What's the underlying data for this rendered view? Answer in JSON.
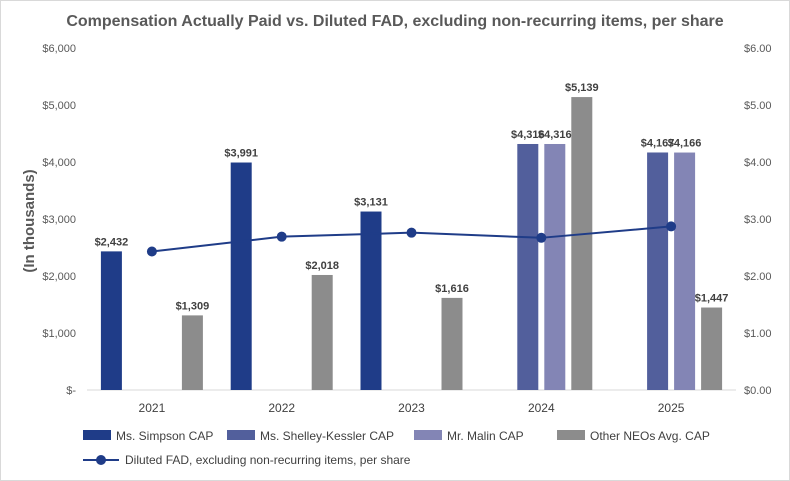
{
  "chart_data": {
    "type": "bar",
    "title": "Compensation Actually Paid vs. Diluted FAD, excluding non-recurring items, per share",
    "ylabel": "(In thousands)",
    "categories": [
      "2021",
      "2022",
      "2023",
      "2024",
      "2025"
    ],
    "y_left": {
      "ylim": [
        0,
        6000
      ],
      "ticks": [
        0,
        1000,
        2000,
        3000,
        4000,
        5000,
        6000
      ],
      "tick_labels": [
        "$-",
        "$1,000",
        "$2,000",
        "$3,000",
        "$4,000",
        "$5,000",
        "$6,000"
      ]
    },
    "y_right": {
      "ylim": [
        0,
        6
      ],
      "ticks": [
        0,
        1,
        2,
        3,
        4,
        5,
        6
      ],
      "tick_labels": [
        "$0.00",
        "$1.00",
        "$2.00",
        "$3.00",
        "$4.00",
        "$5.00",
        "$6.00"
      ]
    },
    "grid": false,
    "legend_position": "bottom",
    "series": [
      {
        "name": "Ms. Simpson CAP",
        "type": "bar",
        "color": "#1f3c88",
        "values": [
          2432,
          3991,
          3131,
          null,
          null
        ],
        "labels": [
          "$2,432",
          "$3,991",
          "$3,131",
          null,
          null
        ]
      },
      {
        "name": "Ms. Shelley-Kessler CAP",
        "type": "bar",
        "color": "#525f9c",
        "values": [
          null,
          null,
          null,
          4316,
          4167
        ],
        "labels": [
          null,
          null,
          null,
          "$4,316",
          "$4,167"
        ]
      },
      {
        "name": "Mr. Malin CAP",
        "type": "bar",
        "color": "#8385b5",
        "values": [
          null,
          null,
          null,
          4316,
          4166
        ],
        "labels": [
          null,
          null,
          null,
          "$4,316",
          "$4,166"
        ]
      },
      {
        "name": "Other NEOs Avg. CAP",
        "type": "bar",
        "color": "#8c8c8c",
        "values": [
          1309,
          2018,
          1616,
          5139,
          1447
        ],
        "labels": [
          "$1,309",
          "$2,018",
          "$1,616",
          "$5,139",
          "$1,447"
        ]
      },
      {
        "name": "Diluted FAD, excluding non-recurring items, per share",
        "type": "line",
        "axis": "right",
        "color": "#1f3c88",
        "values": [
          2.43,
          2.69,
          2.76,
          2.67,
          2.87
        ]
      }
    ]
  }
}
